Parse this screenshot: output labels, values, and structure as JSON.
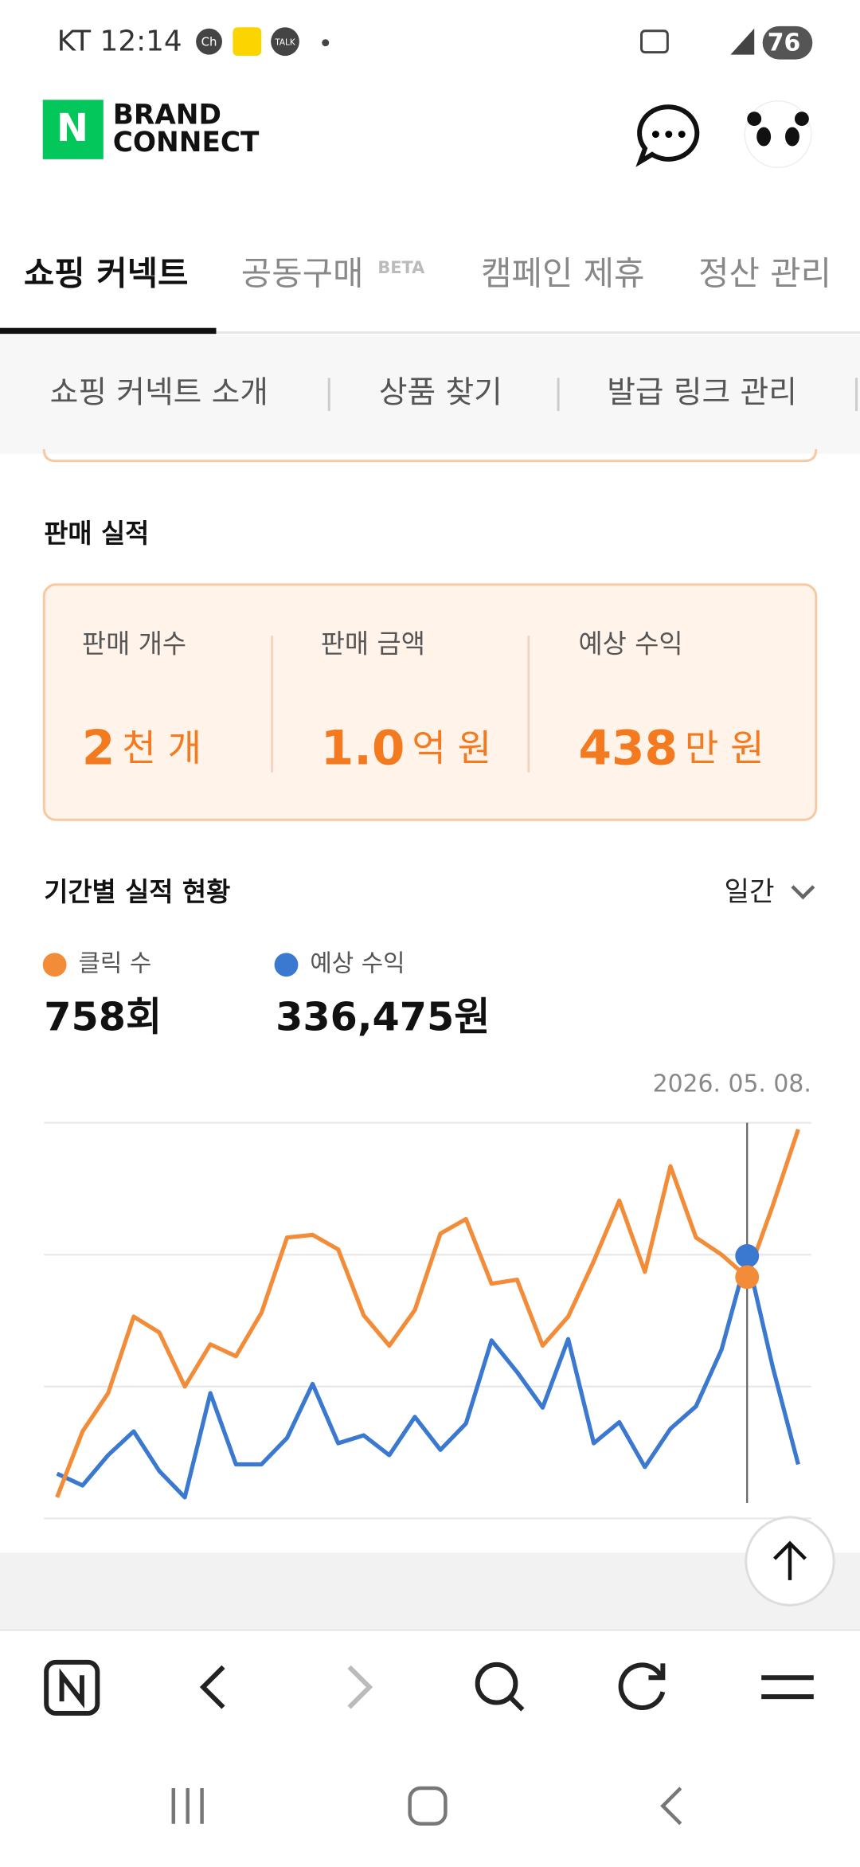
{
  "status_bar": {
    "carrier_time": "KT 12:14",
    "battery": "76",
    "app_icon": "Ch",
    "talk": "TALK"
  },
  "header": {
    "logo_letter": "N",
    "brand_line1": "BRAND",
    "brand_line2": "CONNECT"
  },
  "tabs": [
    "쇼핑 커넥트",
    "공동구매",
    "캠페인 제휴",
    "정산 관리"
  ],
  "beta": "BETA",
  "subnav": [
    "쇼핑 커넥트 소개",
    "상품 찾기",
    "발급 링크 관리"
  ],
  "sales": {
    "title": "판매 실적",
    "stats": [
      {
        "label": "판매 개수",
        "value": "2",
        "unit": "천 개"
      },
      {
        "label": "판매 금액",
        "value": "1.0",
        "unit": "억 원"
      },
      {
        "label": "예상 수익",
        "value": "438",
        "unit": "만 원"
      }
    ]
  },
  "period": {
    "title": "기간별 실적 현황",
    "select": "일간"
  },
  "summary": [
    "758회",
    "336,475원"
  ],
  "chart_data": {
    "type": "line",
    "selected_label": "2026. 05. 08.",
    "selected_index": 27,
    "ylim": [
      0,
      3
    ],
    "yticks": [
      0,
      1,
      2,
      3
    ],
    "grid": true,
    "series": [
      {
        "name": "클릭 수",
        "color": "#f28c38",
        "values": [
          0.16,
          0.66,
          0.95,
          1.53,
          1.41,
          1.0,
          1.32,
          1.23,
          1.56,
          2.13,
          2.15,
          2.04,
          1.54,
          1.31,
          1.58,
          2.16,
          2.27,
          1.78,
          1.81,
          1.31,
          1.53,
          1.95,
          2.41,
          1.87,
          2.67,
          2.13,
          2.0,
          1.83,
          2.37,
          2.95
        ]
      },
      {
        "name": "예상 수익",
        "color": "#3b78d0",
        "values": [
          0.34,
          0.25,
          0.48,
          0.66,
          0.36,
          0.16,
          0.95,
          0.41,
          0.41,
          0.61,
          1.02,
          0.57,
          0.63,
          0.48,
          0.77,
          0.52,
          0.72,
          1.35,
          1.11,
          0.84,
          1.36,
          0.57,
          0.73,
          0.39,
          0.68,
          0.85,
          1.28,
          1.99,
          1.15,
          0.41
        ]
      }
    ]
  }
}
